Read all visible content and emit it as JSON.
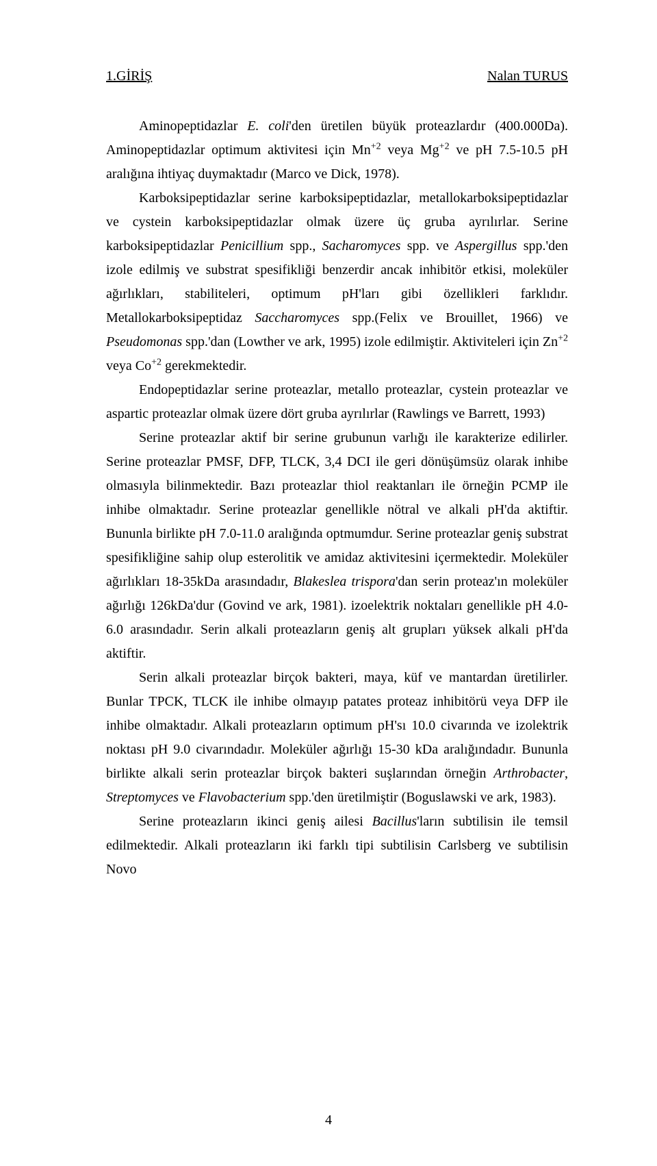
{
  "header": {
    "left": "1.GİRİŞ",
    "right": "Nalan TURUS"
  },
  "paragraphs": {
    "p1": {
      "t1": "Aminopeptidazlar ",
      "i1": "E. coli",
      "t2": "'den üretilen büyük proteazlardır (400.000Da). Aminopeptidazlar optimum aktivitesi için Mn",
      "sup1": "+2",
      "t3": " veya Mg",
      "sup2": "+2",
      "t4": " ve pH 7.5-10.5 pH aralığına ihtiyaç duymaktadır (Marco ve Dick, 1978)."
    },
    "p2": {
      "t1": "Karboksipeptidazlar serine karboksipeptidazlar, metallokarboksipeptidazlar ve cystein karboksipeptidazlar olmak üzere üç gruba ayrılırlar. Serine karboksipeptidazlar ",
      "i1": "Penicillium",
      "t2": " spp., ",
      "i2": "Sacharomyces",
      "t3": " spp. ve ",
      "i3": "Aspergillus",
      "t4": " spp.'den izole edilmiş ve substrat spesifikliği benzerdir ancak inhibitör etkisi, moleküler ağırlıkları, stabiliteleri, optimum pH'ları gibi özellikleri farklıdır. Metallokarboksipeptidaz ",
      "i4": "Saccharomyces",
      "t5": " spp.(Felix ve Brouillet, 1966) ve ",
      "i5": "Pseudomonas",
      "t6": " spp.'dan (Lowther ve ark, 1995) izole edilmiştir. Aktiviteleri için Zn",
      "sup1": "+2",
      "t7": " veya Co",
      "sup2": "+2",
      "t8": " gerekmektedir."
    },
    "p3": {
      "t1": "Endopeptidazlar serine proteazlar, metallo proteazlar, cystein proteazlar ve aspartic proteazlar olmak üzere dört gruba ayrılırlar (Rawlings ve Barrett, 1993)"
    },
    "p4": {
      "t1": "Serine proteazlar aktif bir serine grubunun varlığı ile karakterize edilirler. Serine proteazlar PMSF, DFP, TLCK, 3,4 DCI ile geri dönüşümsüz olarak inhibe olmasıyla bilinmektedir. Bazı proteazlar thiol reaktanları ile örneğin PCMP ile inhibe olmaktadır. Serine proteazlar genellikle nötral ve alkali  pH'da aktiftir. Bununla birlikte pH 7.0-11.0 aralığında optmumdur. Serine proteazlar geniş substrat spesifikliğine sahip olup esterolitik ve amidaz aktivitesini içermektedir. Moleküler ağırlıkları 18-35kDa arasındadır, ",
      "i1": "Blakeslea  trispora",
      "t2": "'dan serin proteaz'ın moleküler ağırlığı 126kDa'dur (Govind ve ark, 1981). izoelektrik noktaları genellikle pH 4.0-6.0 arasındadır. Serin alkali proteazların geniş alt grupları yüksek alkali pH'da aktiftir."
    },
    "p5": {
      "t1": "Serin alkali proteazlar birçok bakteri, maya, küf ve mantardan üretilirler. Bunlar TPCK, TLCK ile inhibe olmayıp patates proteaz inhibitörü veya DFP ile inhibe olmaktadır. Alkali proteazların optimum pH'sı 10.0 civarında ve izolektrik noktası pH 9.0 civarındadır. Moleküler ağırlığı 15-30 kDa aralığındadır. Bununla birlikte alkali serin proteazlar birçok bakteri suşlarından örneğin ",
      "i1": "Arthrobacter",
      "t2": ", ",
      "i2": "Streptomyces",
      "t3": " ve ",
      "i3": "Flavobacterium",
      "t4": " spp.'den üretilmiştir (Boguslawski ve ark, 1983)."
    },
    "p6": {
      "t1": "Serine proteazların ikinci geniş ailesi ",
      "i1": "Bacillus",
      "t2": "'ların subtilisin ile temsil edilmektedir. Alkali proteazların iki farklı tipi subtilisin Carlsberg ve subtilisin Novo"
    }
  },
  "page_number": "4"
}
